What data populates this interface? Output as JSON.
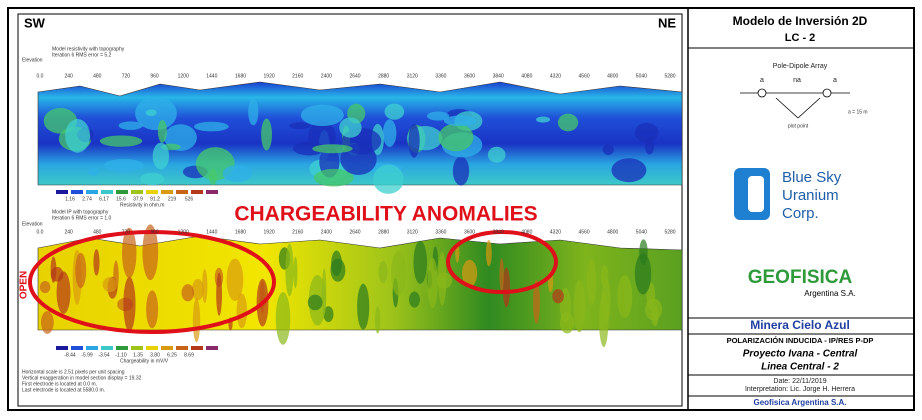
{
  "left_panel": {
    "sw": "SW",
    "ne": "NE",
    "distance_labels": [
      "0.0",
      "240",
      "480",
      "720",
      "960",
      "1200",
      "1440",
      "1680",
      "1920",
      "2160",
      "2400",
      "2640",
      "2880",
      "3120",
      "3360",
      "3600",
      "3840",
      "4080",
      "4320",
      "4560",
      "4800",
      "5040",
      "5280"
    ],
    "resistivity": {
      "title": "Model resistivity with topography",
      "iteration": "Iteration 6 RMS error = 5.2",
      "elevation_label": "Elevation",
      "scale_labels": [
        "1.16",
        "2.74",
        "6.17",
        "15.6",
        "37.9",
        "91.2",
        "219",
        "526"
      ],
      "scale_title": "Resistivity in ohm.m"
    },
    "chargeability": {
      "title": "Model IP with topography",
      "iteration": "Iteration 6 RMS error = 1.0",
      "elevation_label": "Elevation",
      "annotation": "CHARGEABILITY ANOMALIES",
      "open_label": "OPEN",
      "scale_labels": [
        "-8.44",
        "-5.99",
        "-3.54",
        "-1.10",
        "1.35",
        "3.80",
        "6.25",
        "8.69"
      ],
      "scale_title": "Chargeability in mV/V"
    },
    "footer_notes": [
      "Horizontal scale is 2.51 pixels per unit spacing",
      "Vertical exaggeration in model section display = 19.32",
      "First electrode is located at 0.0 m.",
      "Last electrode is located at 5580.0 m."
    ]
  },
  "title_block": {
    "title": "Modelo de Inversión 2D",
    "line": "LC - 2",
    "array": "Pole-Dipole Array",
    "array_labels": [
      "a",
      "na",
      "a"
    ],
    "plot_point": "plot point",
    "spacing": "a = 15 m",
    "company": [
      "Blue Sky",
      "Uranium",
      "Corp."
    ],
    "geofisica": "GEOFISICA",
    "geofisica_sub": "Argentina S.A.",
    "client": "Minera Cielo Azul",
    "method": "POLARIZACIÓN INDUCIDA - IP/RES  P-DP",
    "project": "Proyecto Ivana - Central",
    "line_name": "Linea Central - 2",
    "date": "Date: 22/11/2019",
    "interpretation": "Interpretation: Lic. Jorge H. Herrera",
    "footer": "Geofisica Argentina S.A."
  }
}
